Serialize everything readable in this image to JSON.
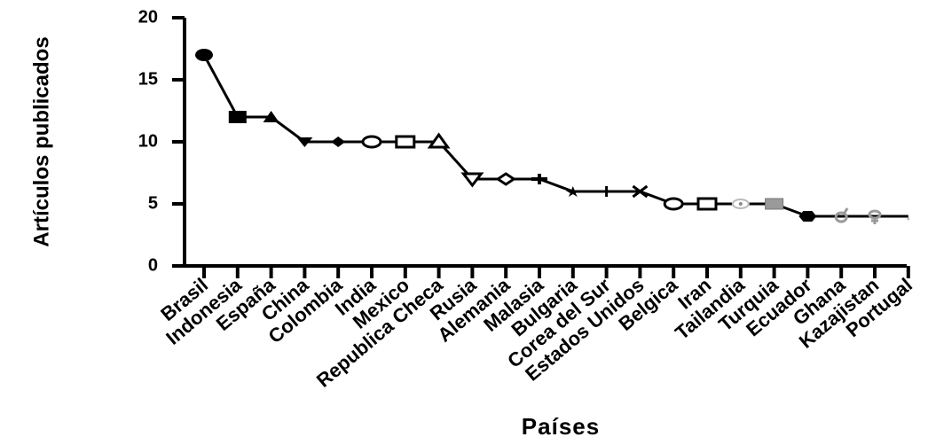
{
  "chart_data": {
    "type": "line",
    "xlabel": "Países",
    "ylabel": "Artículos publicados",
    "ylim": [
      0,
      20
    ],
    "yticks": [
      "0",
      "5",
      "10",
      "15",
      "20"
    ],
    "grid": false,
    "categories": [
      "Brasil",
      "Indonesia",
      "España",
      "China",
      "Colombia",
      "India",
      "Mexico",
      "Republica Checa",
      "Rusia",
      "Alemania",
      "Malasia",
      "Bulgaria",
      "Corea del Sur",
      "Estados Unidos",
      "Belgica",
      "Iran",
      "Tailandia",
      "Turquia",
      "Ecuador",
      "Ghana",
      "Kazajistan",
      "Portugal"
    ],
    "values": [
      17,
      12,
      12,
      10,
      10,
      10,
      10,
      10,
      7,
      7,
      7,
      6,
      6,
      6,
      5,
      5,
      5,
      5,
      4,
      4,
      4,
      4
    ],
    "markers": [
      "circle-filled",
      "square-filled",
      "triangle-filled",
      "triangle-down-filled",
      "diamond-filled",
      "circle-open",
      "square-open",
      "triangle-open",
      "triangle-down-open",
      "diamond-open",
      "plus",
      "star-filled",
      "plus-thin",
      "x",
      "circle-open",
      "square-open",
      "circle-dotted",
      "square-gray",
      "hexagon-filled",
      "male-symbol",
      "female-symbol",
      "dot"
    ]
  }
}
